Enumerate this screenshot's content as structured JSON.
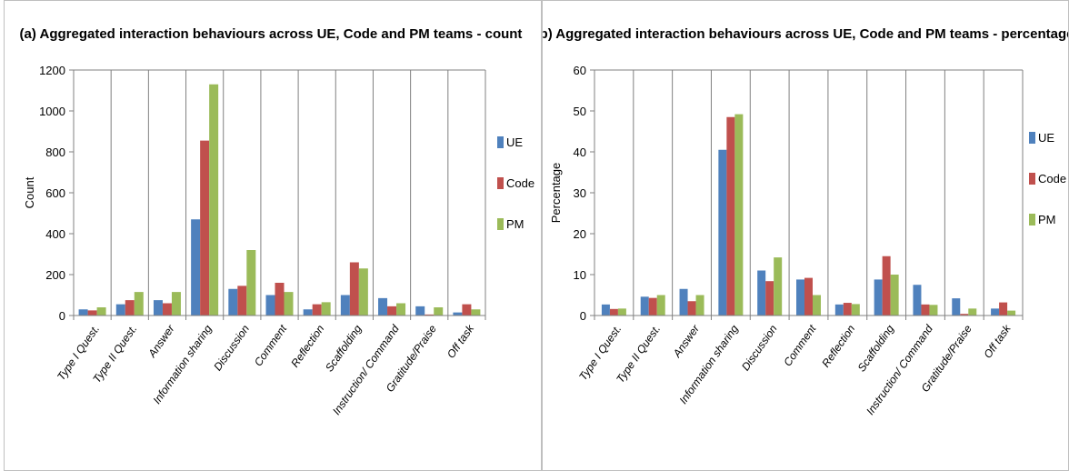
{
  "colors": {
    "UE": "#4F81BD",
    "Code": "#C0504D",
    "PM": "#9BBB59"
  },
  "chart_data": [
    {
      "type": "bar",
      "title": "(a) Aggregated interaction behaviours across UE, Code and PM teams - count",
      "xlabel": "",
      "ylabel": "Count",
      "ylim": [
        0,
        1200
      ],
      "yticks": [
        0,
        200,
        400,
        600,
        800,
        1000,
        1200
      ],
      "grid": "vertical",
      "legend": "right",
      "categories": [
        "Type I Quest.",
        "Type II Quest.",
        "Answer",
        "Information sharing",
        "Discussion",
        "Comment",
        "Reflection",
        "Scaffolding",
        "Instruction/ Command",
        "Gratitude/Praise",
        "Off task"
      ],
      "series": [
        {
          "name": "UE",
          "values": [
            30,
            55,
            75,
            470,
            130,
            100,
            30,
            100,
            85,
            45,
            15
          ]
        },
        {
          "name": "Code",
          "values": [
            25,
            75,
            60,
            855,
            145,
            160,
            55,
            260,
            45,
            5,
            55
          ]
        },
        {
          "name": "PM",
          "values": [
            40,
            115,
            115,
            1130,
            320,
            115,
            65,
            230,
            60,
            40,
            30
          ]
        }
      ]
    },
    {
      "type": "bar",
      "title": "(b) Aggregated interaction behaviours across UE, Code and PM teams - percentage",
      "xlabel": "",
      "ylabel": "Percentage",
      "ylim": [
        0,
        60
      ],
      "yticks": [
        0,
        10,
        20,
        30,
        40,
        50,
        60
      ],
      "grid": "vertical",
      "legend": "right",
      "categories": [
        "Type I Quest.",
        "Type II Quest.",
        "Answer",
        "Information sharing",
        "Discussion",
        "Comment",
        "Reflection",
        "Scaffolding",
        "Instruction/ Command",
        "Gratitude/Praise",
        "Off task"
      ],
      "series": [
        {
          "name": "UE",
          "values": [
            2.7,
            4.6,
            6.5,
            40.5,
            11.0,
            8.8,
            2.7,
            8.8,
            7.5,
            4.2,
            1.7
          ]
        },
        {
          "name": "Code",
          "values": [
            1.6,
            4.3,
            3.5,
            48.5,
            8.4,
            9.2,
            3.1,
            14.5,
            2.7,
            0.4,
            3.2
          ]
        },
        {
          "name": "PM",
          "values": [
            1.7,
            5.0,
            5.0,
            49.2,
            14.2,
            5.0,
            2.8,
            10.0,
            2.6,
            1.7,
            1.2
          ]
        }
      ]
    }
  ]
}
